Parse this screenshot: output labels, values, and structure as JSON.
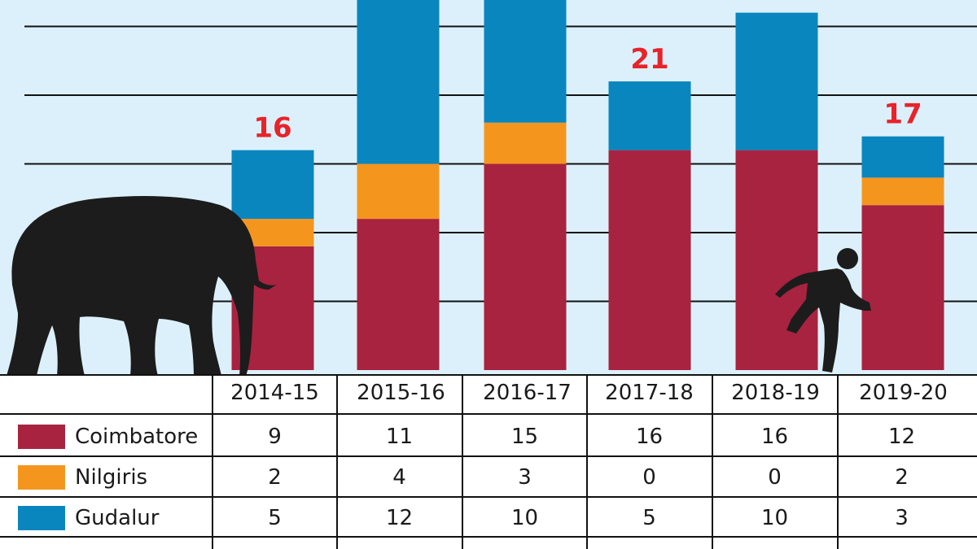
{
  "chart_data": {
    "type": "bar",
    "stacked": true,
    "categories": [
      "2014-15",
      "2015-16",
      "2016-17",
      "2017-18",
      "2018-19",
      "2019-20"
    ],
    "series": [
      {
        "name": "Coimbatore",
        "color": "#a8233f",
        "values": [
          9,
          11,
          15,
          16,
          16,
          12
        ]
      },
      {
        "name": "Nilgiris",
        "color": "#f4961e",
        "values": [
          2,
          4,
          3,
          0,
          0,
          2
        ]
      },
      {
        "name": "Gudalur",
        "color": "#0a86bf",
        "values": [
          5,
          12,
          10,
          5,
          10,
          3
        ]
      }
    ],
    "totals_shown": [
      "16",
      "",
      "",
      "21",
      "",
      "17"
    ],
    "total_label_color": "#e8232a",
    "gridlines": true,
    "legend": "table-below"
  },
  "table": {
    "years": [
      "2014-15",
      "2015-16",
      "2016-17",
      "2017-18",
      "2018-19",
      "2019-20"
    ],
    "rows": [
      {
        "label": "Coimbatore",
        "color": "#a8233f",
        "values": [
          "9",
          "11",
          "15",
          "16",
          "16",
          "12"
        ]
      },
      {
        "label": "Nilgiris",
        "color": "#f4961e",
        "values": [
          "2",
          "4",
          "3",
          "0",
          "0",
          "2"
        ]
      },
      {
        "label": "Gudalur",
        "color": "#0a86bf",
        "values": [
          "5",
          "12",
          "10",
          "5",
          "10",
          "3"
        ]
      }
    ]
  },
  "icons": {
    "elephant": "elephant-silhouette-icon",
    "person": "running-man-silhouette-icon"
  }
}
